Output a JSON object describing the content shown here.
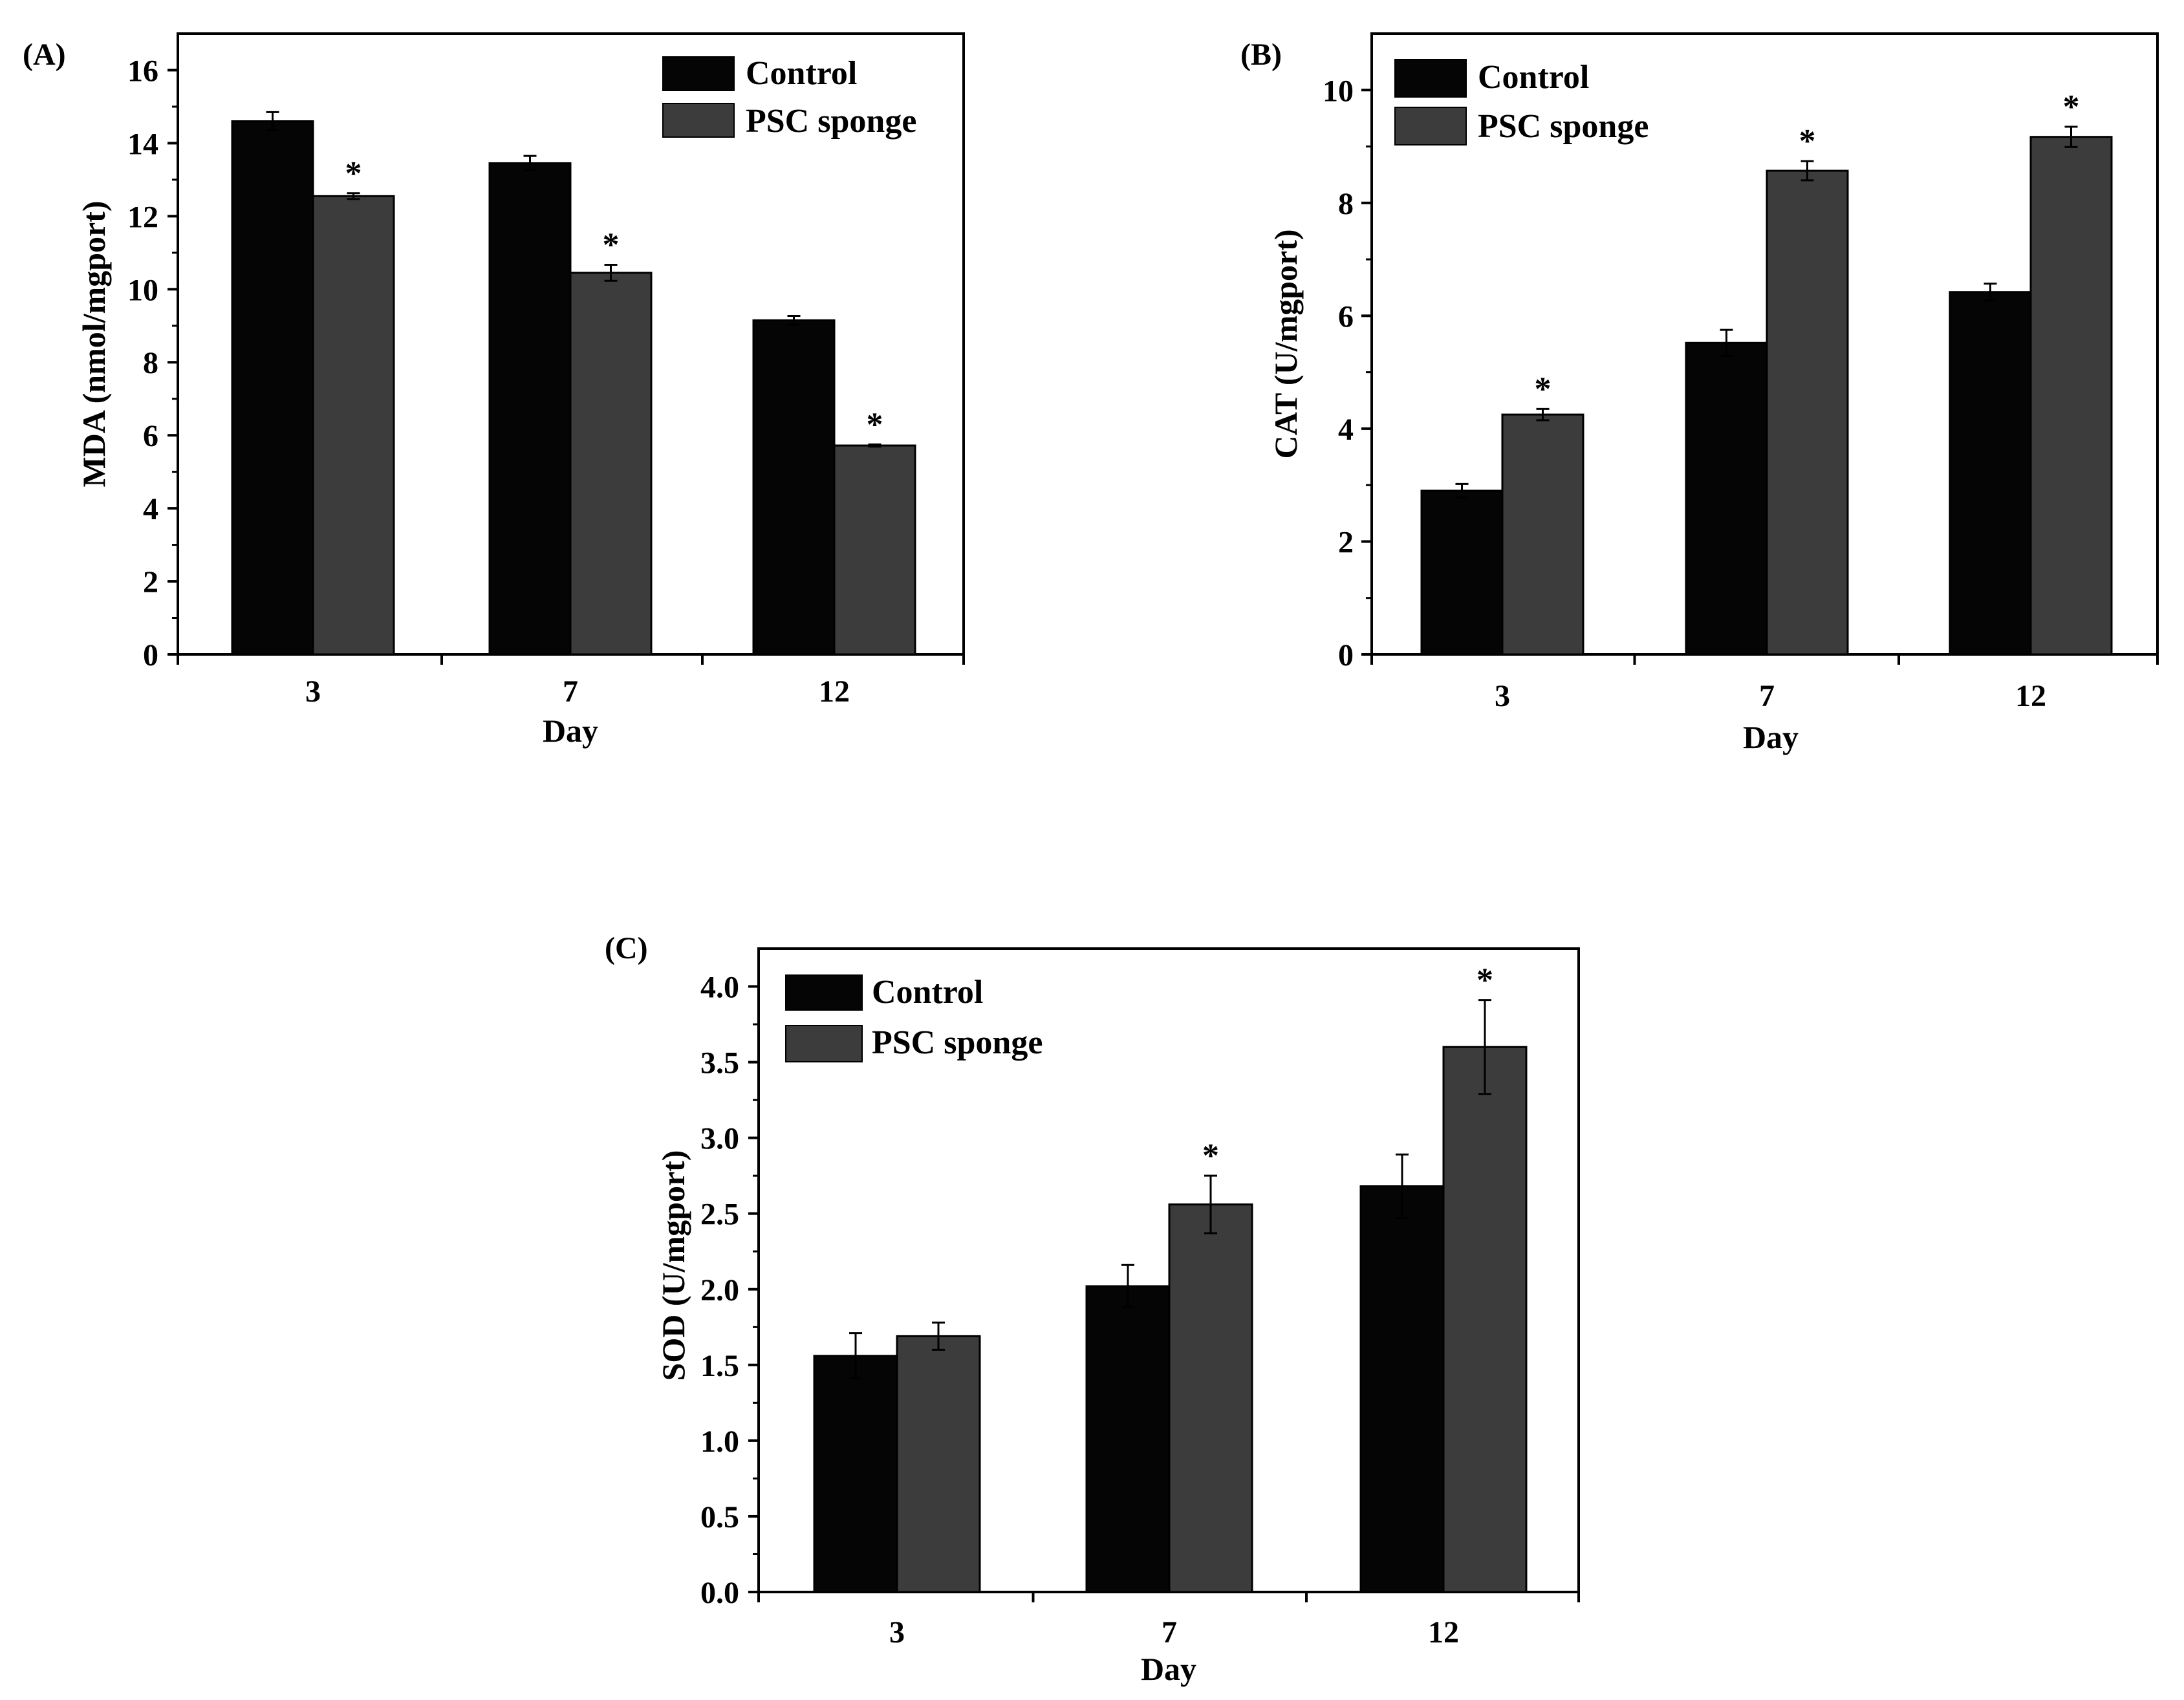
{
  "figure": {
    "legend_entries": [
      "Control",
      "PSC sponge"
    ],
    "colors": {
      "control": "#050505",
      "psc": "#3c3c3c",
      "axis": "#000000"
    }
  },
  "chart_data": [
    {
      "panel": "(A)",
      "type": "bar",
      "categories": [
        "3",
        "7",
        "12"
      ],
      "series": [
        {
          "name": "Control",
          "values": [
            14.6,
            13.45,
            9.15
          ],
          "errors": [
            0.25,
            0.2,
            0.12
          ]
        },
        {
          "name": "PSC sponge",
          "values": [
            12.55,
            10.45,
            5.72
          ],
          "errors": [
            0.08,
            0.22,
            0.03
          ]
        }
      ],
      "significance": [
        "*",
        "*",
        "*"
      ],
      "xlabel": "Day",
      "ylabel": "MDA (nmol/mgport)",
      "ylim": [
        0,
        17
      ],
      "yticks": [
        0,
        2,
        4,
        6,
        8,
        10,
        12,
        14,
        16
      ],
      "ytick_labels": [
        "0",
        "2",
        "4",
        "6",
        "8",
        "10",
        "12",
        "14",
        "16"
      ],
      "legend": "top-right"
    },
    {
      "panel": "(B)",
      "type": "bar",
      "categories": [
        "3",
        "7",
        "12"
      ],
      "series": [
        {
          "name": "Control",
          "values": [
            2.9,
            5.52,
            6.42
          ],
          "errors": [
            0.12,
            0.23,
            0.15
          ]
        },
        {
          "name": "PSC sponge",
          "values": [
            4.25,
            8.57,
            9.17
          ],
          "errors": [
            0.1,
            0.17,
            0.18
          ]
        }
      ],
      "significance": [
        "*",
        "*",
        "*"
      ],
      "xlabel": "Day",
      "ylabel": "CAT (U/mgport)",
      "ylim": [
        0,
        11
      ],
      "yticks": [
        0,
        2,
        4,
        6,
        8,
        10
      ],
      "ytick_labels": [
        "0",
        "2",
        "4",
        "6",
        "8",
        "10"
      ],
      "legend": "top-left"
    },
    {
      "panel": "(C)",
      "type": "bar",
      "categories": [
        "3",
        "7",
        "12"
      ],
      "series": [
        {
          "name": "Control",
          "values": [
            1.56,
            2.02,
            2.68
          ],
          "errors": [
            0.15,
            0.14,
            0.21
          ]
        },
        {
          "name": "PSC sponge",
          "values": [
            1.69,
            2.56,
            3.6
          ],
          "errors": [
            0.09,
            0.19,
            0.31
          ]
        }
      ],
      "significance": [
        "",
        "*",
        "*"
      ],
      "xlabel": "Day",
      "ylabel": "SOD (U/mgport)",
      "ylim": [
        0,
        4.25
      ],
      "yticks": [
        0,
        0.5,
        1.0,
        1.5,
        2.0,
        2.5,
        3.0,
        3.5,
        4.0
      ],
      "ytick_labels": [
        "0.0",
        "0.5",
        "1.0",
        "1.5",
        "2.0",
        "2.5",
        "3.0",
        "3.5",
        "4.0"
      ],
      "legend": "top-left"
    }
  ]
}
